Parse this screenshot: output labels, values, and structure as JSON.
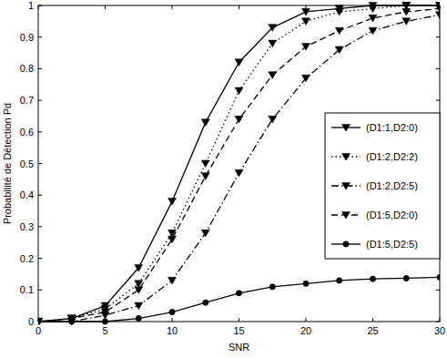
{
  "chart_data": {
    "type": "line",
    "x_label": "SNR",
    "y_label": "Probabilité de Détection Pd",
    "x": [
      0,
      2.5,
      5,
      7.5,
      10,
      12.5,
      15,
      17.5,
      20,
      22.5,
      25,
      27.5,
      30
    ],
    "xlim": [
      0,
      30
    ],
    "xticks": [
      0,
      5,
      10,
      15,
      20,
      25,
      30
    ],
    "ylim": [
      0,
      1
    ],
    "yticks": [
      0,
      0.1,
      0.2,
      0.3,
      0.4,
      0.5,
      0.6,
      0.7,
      0.8,
      0.9,
      1
    ],
    "grid": false,
    "legend": "east",
    "series": [
      {
        "name": "(D1:1,D2:0)",
        "color": "#000000",
        "marker": "triangle-down",
        "line_style": "solid",
        "values": [
          0,
          0.01,
          0.05,
          0.17,
          0.38,
          0.63,
          0.82,
          0.93,
          0.98,
          0.99,
          1.0,
          1.0,
          1.0
        ]
      },
      {
        "name": "(D1:2,D2:2)",
        "color": "#000000",
        "marker": "triangle-down",
        "line_style": "dotted",
        "values": [
          0,
          0.01,
          0.04,
          0.12,
          0.28,
          0.5,
          0.73,
          0.88,
          0.95,
          0.98,
          0.99,
          1.0,
          1.0
        ]
      },
      {
        "name": "(D1:2,D2:5)",
        "color": "#000000",
        "marker": "triangle-down",
        "line_style": "dashdot",
        "values": [
          0,
          0.0,
          0.02,
          0.05,
          0.13,
          0.28,
          0.47,
          0.64,
          0.77,
          0.86,
          0.92,
          0.95,
          0.97
        ]
      },
      {
        "name": "(D1:5,D2:0)",
        "color": "#000000",
        "marker": "triangle-down",
        "line_style": "dashed",
        "values": [
          0,
          0.01,
          0.03,
          0.1,
          0.26,
          0.46,
          0.64,
          0.78,
          0.87,
          0.92,
          0.96,
          0.98,
          0.99
        ]
      },
      {
        "name": "(D1:5,D2:5)",
        "color": "#000000",
        "marker": "circle",
        "line_style": "solid",
        "values": [
          0,
          0.0,
          0.0,
          0.01,
          0.03,
          0.06,
          0.09,
          0.11,
          0.12,
          0.13,
          0.135,
          0.137,
          0.14
        ]
      }
    ]
  }
}
